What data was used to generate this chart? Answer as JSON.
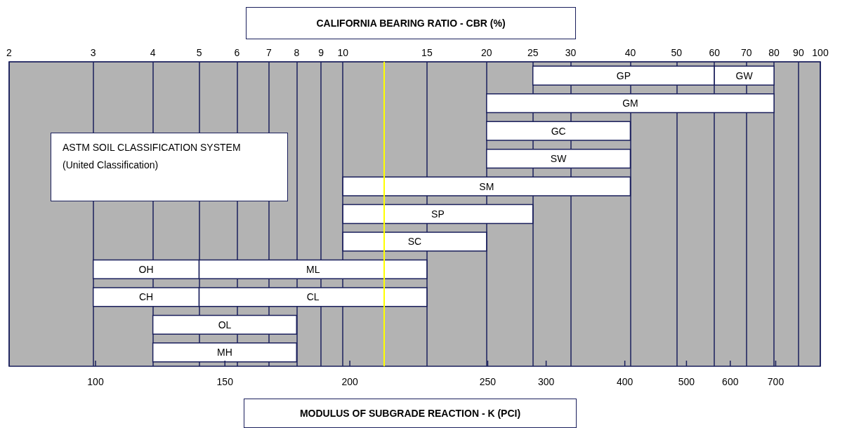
{
  "chart_data": {
    "type": "bar",
    "orientation": "horizontal",
    "xlabel": "CALIFORNIA BEARING RATIO - CBR (%)",
    "x2label": "MODULUS OF SUBGRADE REACTION - K (PCI)",
    "annotations": [
      "ASTM  SOIL CLASSIFICATION SYSTEM",
      "(United Classification)",
      "100",
      "150",
      "200",
      "250",
      "300",
      "400",
      "500",
      "600",
      "700"
    ],
    "categories": [
      null,
      null,
      null,
      null,
      null,
      null,
      null,
      null,
      null,
      null,
      null
    ],
    "log": "x",
    "xlim": [
      2,
      100
    ],
    "xticks": [
      2,
      3,
      4,
      5,
      6,
      7,
      8,
      9,
      10,
      15,
      20,
      25,
      30,
      40,
      50,
      60,
      70,
      80,
      90,
      100
    ],
    "grid": "x",
    "ref_lines": [
      {
        "axis": "x",
        "value": 12.2,
        "color": "#ffff00"
      }
    ],
    "series": [
      {
        "name": "GP",
        "color": "#ffffff",
        "base": [
          25,
          null,
          null,
          null,
          null,
          null,
          null,
          null,
          null,
          null,
          null
        ],
        "values": [
          35,
          null,
          null,
          null,
          null,
          null,
          null,
          null,
          null,
          null,
          null
        ]
      },
      {
        "name": "GW",
        "color": "#ffffff",
        "base": [
          60,
          null,
          null,
          null,
          null,
          null,
          null,
          null,
          null,
          null,
          null
        ],
        "values": [
          20,
          null,
          null,
          null,
          null,
          null,
          null,
          null,
          null,
          null,
          null
        ]
      },
      {
        "name": "GM",
        "color": "#ffffff",
        "base": [
          null,
          20,
          null,
          null,
          null,
          null,
          null,
          null,
          null,
          null,
          null
        ],
        "values": [
          null,
          60,
          null,
          null,
          null,
          null,
          null,
          null,
          null,
          null,
          null
        ]
      },
      {
        "name": "GC",
        "color": "#ffffff",
        "base": [
          null,
          null,
          20,
          null,
          null,
          null,
          null,
          null,
          null,
          null,
          null
        ],
        "values": [
          null,
          null,
          20,
          null,
          null,
          null,
          null,
          null,
          null,
          null,
          null
        ]
      },
      {
        "name": "SW",
        "color": "#ffffff",
        "base": [
          null,
          null,
          null,
          20,
          null,
          null,
          null,
          null,
          null,
          null,
          null
        ],
        "values": [
          null,
          null,
          null,
          20,
          null,
          null,
          null,
          null,
          null,
          null,
          null
        ]
      },
      {
        "name": "SM",
        "color": "#ffffff",
        "base": [
          null,
          null,
          null,
          null,
          10,
          null,
          null,
          null,
          null,
          null,
          null
        ],
        "values": [
          null,
          null,
          null,
          null,
          30,
          null,
          null,
          null,
          null,
          null,
          null
        ]
      },
      {
        "name": "SP",
        "color": "#ffffff",
        "base": [
          null,
          null,
          null,
          null,
          null,
          10,
          null,
          null,
          null,
          null,
          null
        ],
        "values": [
          null,
          null,
          null,
          null,
          null,
          15,
          null,
          null,
          null,
          null,
          null
        ]
      },
      {
        "name": "SC",
        "color": "#ffffff",
        "base": [
          null,
          null,
          null,
          null,
          null,
          null,
          10,
          null,
          null,
          null,
          null
        ],
        "values": [
          null,
          null,
          null,
          null,
          null,
          null,
          10,
          null,
          null,
          null,
          null
        ]
      },
      {
        "name": "OH",
        "color": "#ffffff",
        "base": [
          null,
          null,
          null,
          null,
          null,
          null,
          null,
          3,
          null,
          null,
          null
        ],
        "values": [
          null,
          null,
          null,
          null,
          null,
          null,
          null,
          2,
          null,
          null,
          null
        ]
      },
      {
        "name": "ML",
        "color": "#ffffff",
        "base": [
          null,
          null,
          null,
          null,
          null,
          null,
          null,
          5,
          null,
          null,
          null
        ],
        "values": [
          null,
          null,
          null,
          null,
          null,
          null,
          null,
          10,
          null,
          null,
          null
        ]
      },
      {
        "name": "CH",
        "color": "#ffffff",
        "base": [
          null,
          null,
          null,
          null,
          null,
          null,
          null,
          null,
          3,
          null,
          null
        ],
        "values": [
          null,
          null,
          null,
          null,
          null,
          null,
          null,
          null,
          2,
          null,
          null
        ]
      },
      {
        "name": "CL",
        "color": "#ffffff",
        "base": [
          null,
          null,
          null,
          null,
          null,
          null,
          null,
          null,
          5,
          null,
          null
        ],
        "values": [
          null,
          null,
          null,
          null,
          null,
          null,
          null,
          null,
          10,
          null,
          null
        ]
      },
      {
        "name": "OL",
        "color": "#ffffff",
        "base": [
          null,
          null,
          null,
          null,
          null,
          null,
          null,
          null,
          null,
          4,
          null
        ],
        "values": [
          null,
          null,
          null,
          null,
          null,
          null,
          null,
          null,
          null,
          4,
          null
        ]
      },
      {
        "name": "MH",
        "color": "#ffffff",
        "base": [
          null,
          null,
          null,
          null,
          null,
          null,
          null,
          null,
          null,
          null,
          4
        ],
        "values": [
          null,
          null,
          null,
          null,
          null,
          null,
          null,
          null,
          null,
          null,
          4
        ]
      }
    ]
  }
}
